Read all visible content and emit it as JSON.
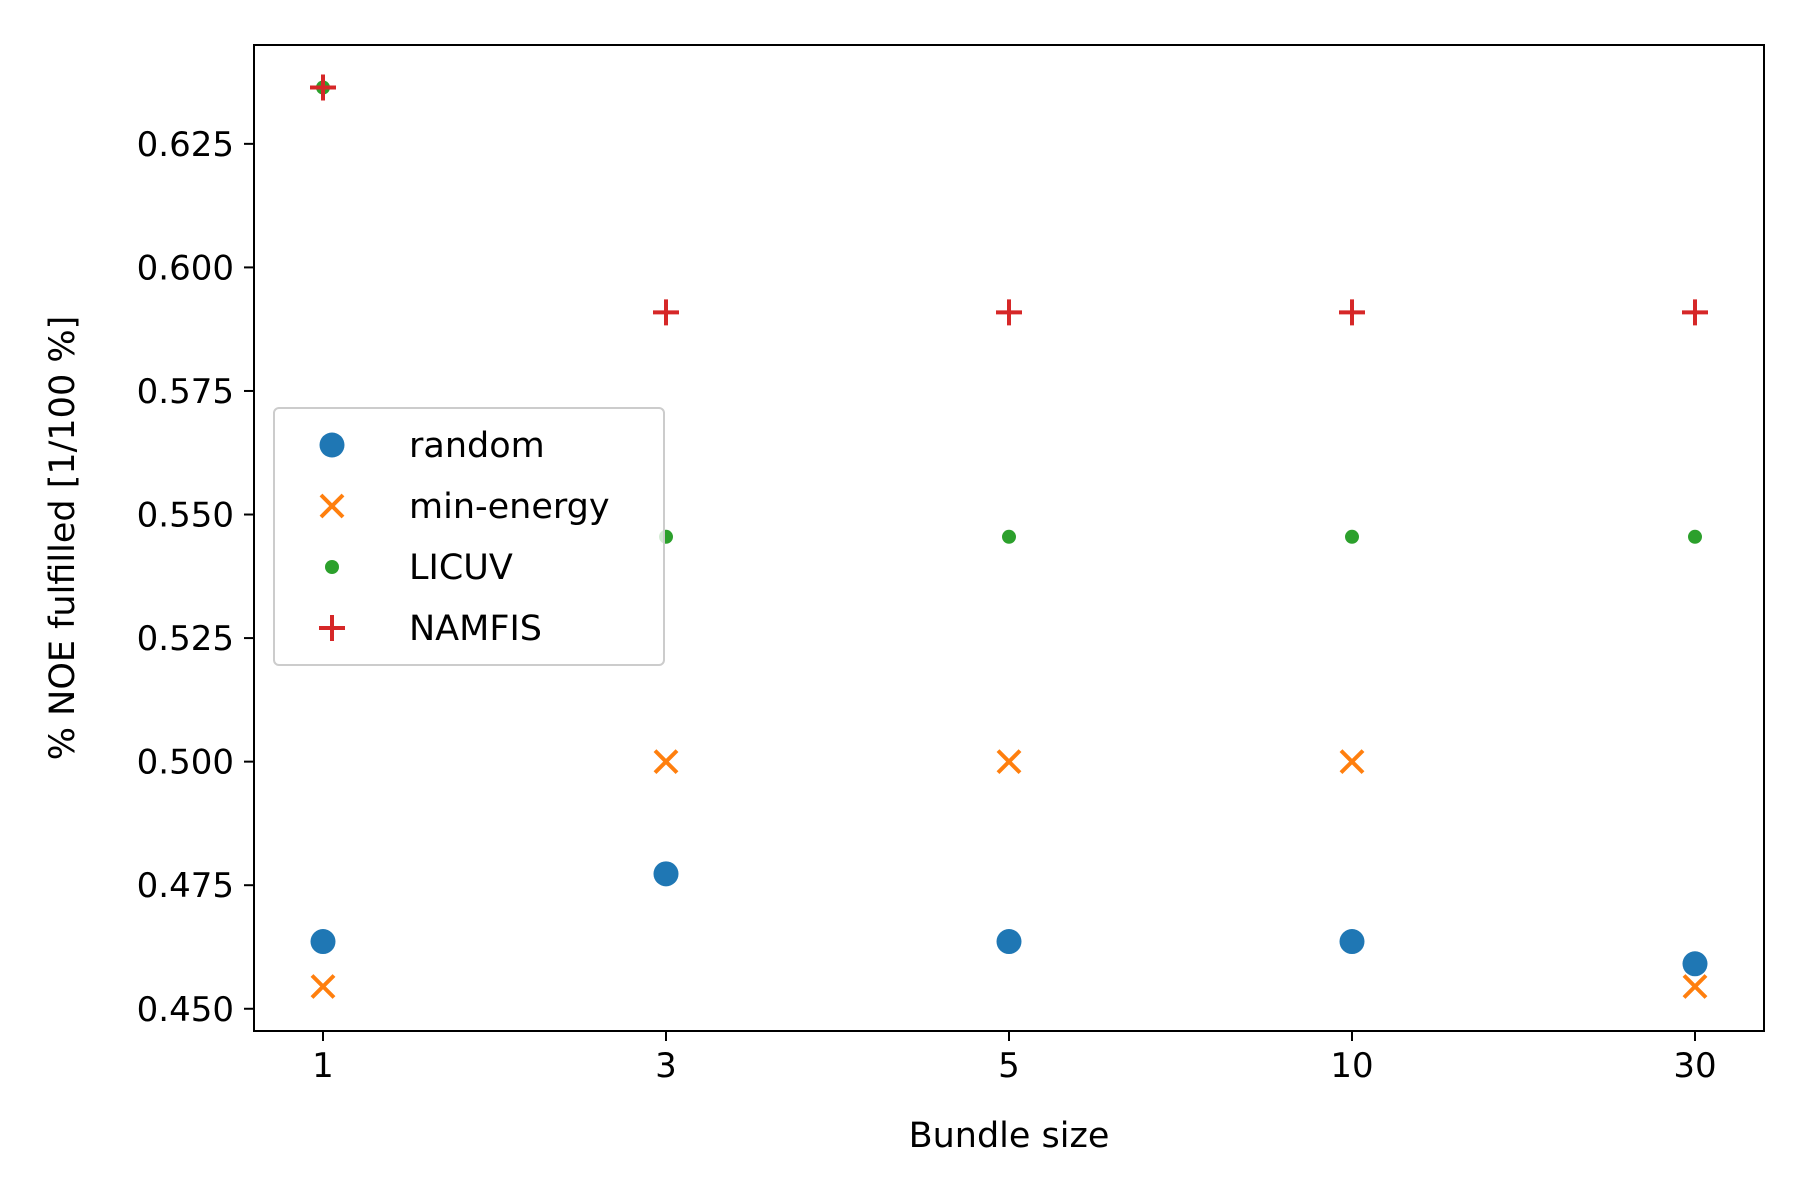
{
  "chart_data": {
    "type": "scatter",
    "xlabel": "Bundle size",
    "ylabel": "% NOE fulfilled [1/100 %]",
    "categories": [
      "1",
      "3",
      "5",
      "10",
      "30"
    ],
    "ylim": [
      0.4455,
      0.645
    ],
    "yticks": [
      "0.450",
      "0.475",
      "0.500",
      "0.525",
      "0.550",
      "0.575",
      "0.600",
      "0.625"
    ],
    "grid": false,
    "legend_position": "center-left",
    "series": [
      {
        "name": "random",
        "marker": "circle",
        "color": "#1f77b4",
        "values": [
          0.4636,
          0.4773,
          0.4636,
          0.4636,
          0.4591
        ]
      },
      {
        "name": "min-energy",
        "marker": "x",
        "color": "#ff7f0e",
        "values": [
          0.4545,
          0.5,
          0.5,
          0.5,
          0.4545
        ]
      },
      {
        "name": "LICUV",
        "marker": "dot",
        "color": "#2ca02c",
        "values": [
          0.6364,
          0.5455,
          0.5455,
          0.5455,
          0.5455
        ]
      },
      {
        "name": "NAMFIS",
        "marker": "plus",
        "color": "#d62728",
        "values": [
          0.6364,
          0.5909,
          0.5909,
          0.5909,
          0.5909
        ]
      }
    ]
  }
}
